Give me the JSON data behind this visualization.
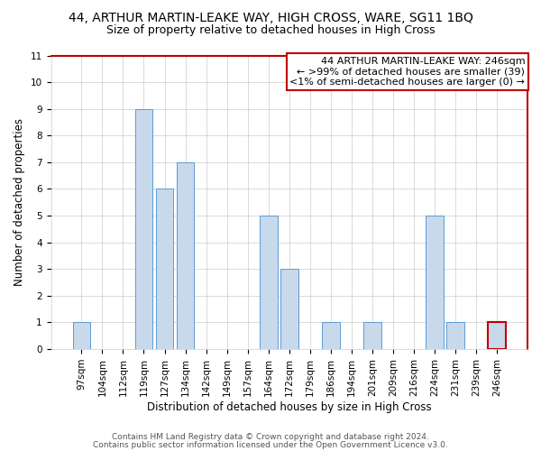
{
  "title": "44, ARTHUR MARTIN-LEAKE WAY, HIGH CROSS, WARE, SG11 1BQ",
  "subtitle": "Size of property relative to detached houses in High Cross",
  "xlabel": "Distribution of detached houses by size in High Cross",
  "ylabel": "Number of detached properties",
  "categories": [
    "97sqm",
    "104sqm",
    "112sqm",
    "119sqm",
    "127sqm",
    "134sqm",
    "142sqm",
    "149sqm",
    "157sqm",
    "164sqm",
    "172sqm",
    "179sqm",
    "186sqm",
    "194sqm",
    "201sqm",
    "209sqm",
    "216sqm",
    "224sqm",
    "231sqm",
    "239sqm",
    "246sqm"
  ],
  "values": [
    1,
    0,
    0,
    9,
    6,
    7,
    0,
    0,
    0,
    5,
    3,
    0,
    1,
    0,
    1,
    0,
    0,
    5,
    1,
    0,
    1
  ],
  "bar_color": "#c9d9ec",
  "bar_edge_color": "#5b9bd5",
  "highlight_index": 20,
  "highlight_bar_edge_color": "#c00000",
  "annotation_box_text": "44 ARTHUR MARTIN-LEAKE WAY: 246sqm\n← >99% of detached houses are smaller (39)\n<1% of semi-detached houses are larger (0) →",
  "annotation_box_edge_color": "#c00000",
  "ylim": [
    0,
    11
  ],
  "yticks": [
    0,
    1,
    2,
    3,
    4,
    5,
    6,
    7,
    8,
    9,
    10,
    11
  ],
  "footer1": "Contains HM Land Registry data © Crown copyright and database right 2024.",
  "footer2": "Contains public sector information licensed under the Open Government Licence v3.0.",
  "grid_color": "#cccccc",
  "background_color": "#ffffff",
  "title_fontsize": 10,
  "subtitle_fontsize": 9,
  "axis_label_fontsize": 8.5,
  "tick_fontsize": 7.5,
  "annotation_fontsize": 8,
  "footer_fontsize": 6.5
}
